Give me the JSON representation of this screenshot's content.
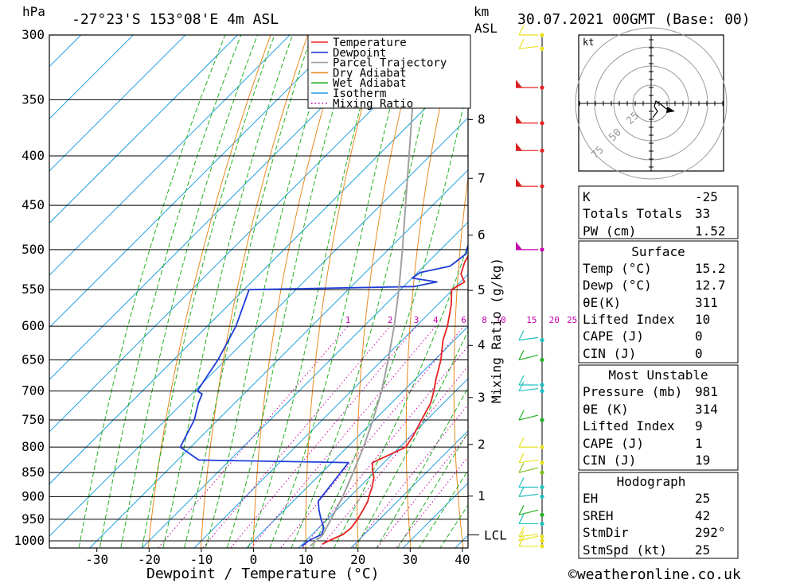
{
  "header": {
    "pressure_unit": "hPa",
    "location": "-27°23'S 153°08'E 4m ASL",
    "height_unit_line1": "km",
    "height_unit_line2": "ASL",
    "datetime": "30.07.2021 00GMT (Base: 00)"
  },
  "footer": {
    "copyright": "©weatheronline.co.uk"
  },
  "chart_data": {
    "type": "line",
    "subtype": "skew-T log-P diagram",
    "xlabel": "Dewpoint / Temperature (°C)",
    "ylabel": "hPa",
    "secondary_ylabel": "Mixing Ratio (g/kg)",
    "x_ticks": [
      -30,
      -20,
      -10,
      0,
      10,
      20,
      30,
      40
    ],
    "xlim": [
      -40,
      40
    ],
    "pressure_ticks": [
      300,
      350,
      400,
      450,
      500,
      550,
      600,
      650,
      700,
      750,
      800,
      850,
      900,
      950,
      1000
    ],
    "ylim": [
      1013,
      300
    ],
    "y_scale": "log",
    "skew": "isotherms slanted 45°",
    "height_ticks": [
      {
        "label": "1",
        "p": 899
      },
      {
        "label": "2",
        "p": 795
      },
      {
        "label": "3",
        "p": 711
      },
      {
        "label": "4",
        "p": 628
      },
      {
        "label": "5",
        "p": 551
      },
      {
        "label": "6",
        "p": 483
      },
      {
        "label": "7",
        "p": 422
      },
      {
        "label": "8",
        "p": 367
      }
    ],
    "lcl": {
      "label": "LCL",
      "p": 986
    },
    "mixing_ratio_labels": [
      "1",
      "2",
      "3",
      "4",
      "6",
      "8",
      "10",
      "15",
      "20",
      "25"
    ],
    "mixing_ratio_values": [
      1,
      2,
      3,
      4,
      6,
      8,
      10,
      15,
      20,
      25
    ],
    "legend": {
      "placement": "top-right of plot",
      "entries": [
        {
          "name": "Temperature",
          "color": "#e82020",
          "style": "solid"
        },
        {
          "name": "Dewpoint",
          "color": "#1e3cd8",
          "style": "solid"
        },
        {
          "name": "Parcel Trajectory",
          "color": "#a0a0a0",
          "style": "solid"
        },
        {
          "name": "Dry Adiabat",
          "color": "#e88a20",
          "style": "solid"
        },
        {
          "name": "Wet Adiabat",
          "color": "#20b020",
          "style": "solid"
        },
        {
          "name": "Isotherm",
          "color": "#20a0e0",
          "style": "solid"
        },
        {
          "name": "Mixing Ratio",
          "color": "#c800b0",
          "style": "dotted"
        }
      ]
    },
    "series": [
      {
        "name": "Temperature",
        "color": "#e82020",
        "points": [
          [
            1008,
            13.8
          ],
          [
            1000,
            14.4
          ],
          [
            985,
            15.9
          ],
          [
            970,
            16.2
          ],
          [
            950,
            15.8
          ],
          [
            930,
            15.1
          ],
          [
            910,
            14.3
          ],
          [
            900,
            13.6
          ],
          [
            880,
            12.4
          ],
          [
            860,
            10.9
          ],
          [
            845,
            9.2
          ],
          [
            830,
            7.8
          ],
          [
            815,
            9.5
          ],
          [
            800,
            11.2
          ],
          [
            780,
            10.5
          ],
          [
            750,
            9.0
          ],
          [
            720,
            7.5
          ],
          [
            700,
            5.8
          ],
          [
            680,
            3.9
          ],
          [
            650,
            1.2
          ],
          [
            620,
            -2.2
          ],
          [
            600,
            -4.0
          ],
          [
            570,
            -7.4
          ],
          [
            550,
            -10.2
          ],
          [
            540,
            -9.2
          ],
          [
            530,
            -11.4
          ],
          [
            515,
            -13.0
          ],
          [
            500,
            -14.0
          ],
          [
            470,
            -17.5
          ],
          [
            450,
            -20.2
          ],
          [
            420,
            -24.0
          ],
          [
            400,
            -27.0
          ],
          [
            380,
            -30.5
          ],
          [
            365,
            -33.5
          ],
          [
            350,
            -37.5
          ],
          [
            335,
            -40.8
          ],
          [
            325,
            -43.5
          ],
          [
            310,
            -46.0
          ],
          [
            300,
            -48.0
          ]
        ]
      },
      {
        "name": "Dewpoint",
        "color": "#1e3cd8",
        "points": [
          [
            1013,
            10.3
          ],
          [
            1000,
            10.5
          ],
          [
            985,
            11.8
          ],
          [
            970,
            11.0
          ],
          [
            950,
            8.8
          ],
          [
            930,
            6.7
          ],
          [
            910,
            4.8
          ],
          [
            880,
            4.2
          ],
          [
            850,
            3.6
          ],
          [
            830,
            3.2
          ],
          [
            825,
            -26.0
          ],
          [
            800,
            -32.0
          ],
          [
            780,
            -33.0
          ],
          [
            750,
            -34.5
          ],
          [
            720,
            -37.0
          ],
          [
            705,
            -38.0
          ],
          [
            700,
            -39.5
          ],
          [
            650,
            -41.5
          ],
          [
            600,
            -44.5
          ],
          [
            550,
            -49.0
          ],
          [
            546,
            -18.0
          ],
          [
            540,
            -14.5
          ],
          [
            535,
            -20.0
          ],
          [
            528,
            -19.5
          ],
          [
            520,
            -15.0
          ],
          [
            505,
            -14.3
          ],
          [
            500,
            -15.0
          ],
          [
            470,
            -18.2
          ],
          [
            440,
            -21.5
          ],
          [
            420,
            -23.5
          ],
          [
            405,
            -27.5
          ],
          [
            395,
            -29.5
          ],
          [
            360,
            -31.8
          ],
          [
            345,
            -35.5
          ],
          [
            340,
            -40.8
          ],
          [
            335,
            -45.8
          ],
          [
            330,
            -57.5
          ],
          [
            320,
            -60.0
          ],
          [
            310,
            -63.5
          ],
          [
            300,
            -61.5
          ]
        ]
      },
      {
        "name": "Parcel Trajectory",
        "color": "#a0a0a0",
        "points": [
          [
            1013,
            11.9
          ],
          [
            986,
            12.1
          ],
          [
            950,
            10.7
          ],
          [
            900,
            8.6
          ],
          [
            850,
            6.0
          ],
          [
            800,
            3.1
          ],
          [
            750,
            -0.3
          ],
          [
            700,
            -4.2
          ],
          [
            650,
            -8.9
          ],
          [
            600,
            -14.2
          ],
          [
            550,
            -20.3
          ],
          [
            500,
            -27.3
          ],
          [
            450,
            -35.2
          ],
          [
            400,
            -44.0
          ],
          [
            350,
            -54.0
          ],
          [
            300,
            -64.0
          ]
        ]
      }
    ]
  },
  "wind_profile": {
    "flag_color": "#d82020",
    "pole_color": "#000000",
    "levels": [
      300,
      310,
      340,
      370,
      395,
      430,
      500,
      620,
      650,
      690,
      700,
      750,
      800,
      830,
      850,
      880,
      900,
      940,
      960,
      990,
      1000,
      1013
    ],
    "marker_colors": [
      "#e8e020",
      "#e8e020",
      "#e82020",
      "#e82020",
      "#e82020",
      "#e82020",
      "#c800b0",
      "#20c0c0",
      "#20b020",
      "#20c0c0",
      "#20c0c0",
      "#20b020",
      "#e8e020",
      "#e8e020",
      "#80c020",
      "#20c0c0",
      "#20c0c0",
      "#20b020",
      "#20c0c0",
      "#e8e020",
      "#e8e020",
      "#e8e020"
    ]
  },
  "hodograph": {
    "unit": "kt",
    "ring_labels": [
      "25",
      "50",
      "75"
    ]
  },
  "indices": {
    "general": [
      {
        "label": "K",
        "value": "-25"
      },
      {
        "label": "Totals Totals",
        "value": "33"
      },
      {
        "label": "PW (cm)",
        "value": "1.52"
      }
    ],
    "surface": {
      "title": "Surface",
      "rows": [
        {
          "label": "Temp (°C)",
          "value": "15.2"
        },
        {
          "label": "Dewp (°C)",
          "value": "12.7"
        },
        {
          "label": "θE(K)",
          "value": "311"
        },
        {
          "label": "Lifted Index",
          "value": "10"
        },
        {
          "label": "CAPE (J)",
          "value": "0"
        },
        {
          "label": "CIN (J)",
          "value": "0"
        }
      ]
    },
    "most_unstable": {
      "title": "Most Unstable",
      "rows": [
        {
          "label": "Pressure (mb)",
          "value": "981"
        },
        {
          "label": "θE (K)",
          "value": "314"
        },
        {
          "label": "Lifted Index",
          "value": "9"
        },
        {
          "label": "CAPE (J)",
          "value": "1"
        },
        {
          "label": "CIN (J)",
          "value": "19"
        }
      ]
    },
    "hodograph_box": {
      "title": "Hodograph",
      "rows": [
        {
          "label": "EH",
          "value": "25"
        },
        {
          "label": "SREH",
          "value": "42"
        },
        {
          "label": "StmDir",
          "value": "292°"
        },
        {
          "label": "StmSpd (kt)",
          "value": "25"
        }
      ]
    }
  }
}
